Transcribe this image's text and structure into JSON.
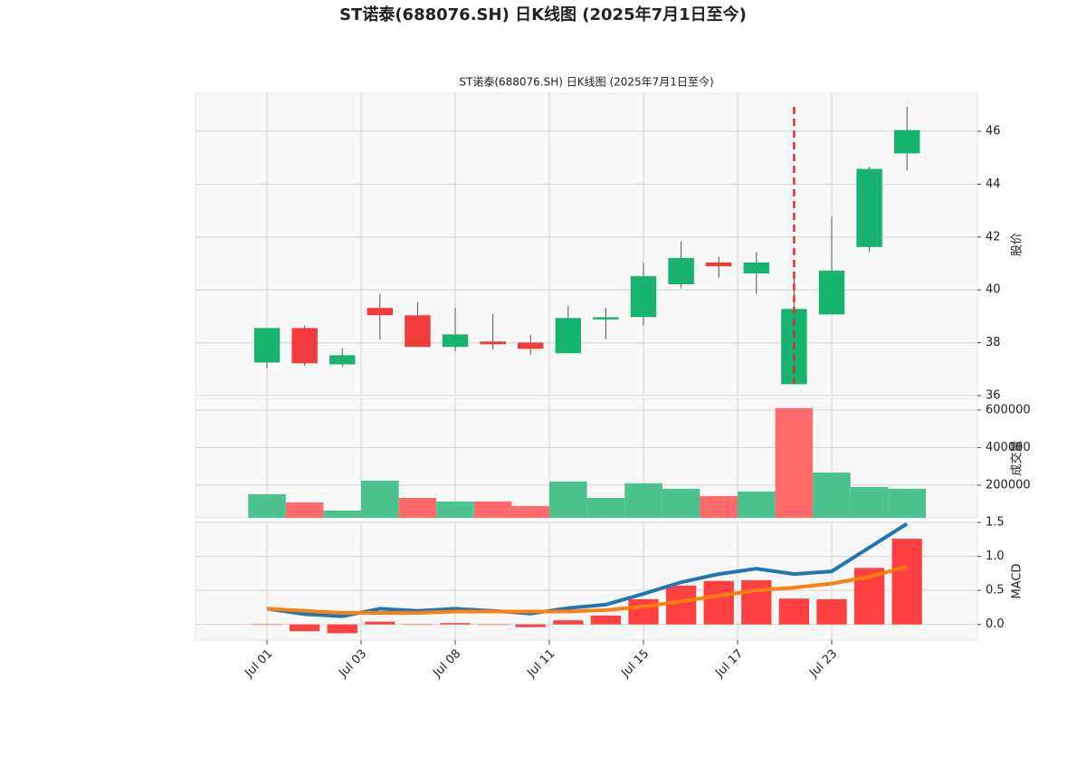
{
  "chart_data": {
    "type": "candlestick",
    "suptitle": "ST诺泰(688076.SH) 日K线图 (2025年7月1日至今)",
    "title": "ST诺泰(688076.SH) 日K线图 (2025年7月1日至今)",
    "xlim": [
      -1.9,
      18.87
    ],
    "xticks": [
      {
        "value": 0,
        "label": "Jul 01"
      },
      {
        "value": 2.5,
        "label": "Jul 03"
      },
      {
        "value": 5,
        "label": "Jul 08"
      },
      {
        "value": 7.5,
        "label": "Jul 11"
      },
      {
        "value": 10,
        "label": "Jul 15"
      },
      {
        "value": 12.5,
        "label": "Jul 17"
      },
      {
        "value": 15,
        "label": "Jul 23"
      }
    ],
    "grid": true,
    "price": {
      "ylabel": "股价",
      "ylim": [
        36,
        47.44
      ],
      "yticks": [
        36,
        38,
        40,
        42,
        44,
        46
      ],
      "up_color": "#16b46e",
      "down_color": "#f23c3c",
      "wick_color": "#555555",
      "open": [
        37.27,
        38.54,
        37.2,
        39.3,
        39.02,
        37.86,
        38.03,
        37.99,
        37.62,
        38.93,
        38.99,
        40.23,
        41.02,
        40.64,
        36.45,
        39.09,
        41.64,
        45.18
      ],
      "high": [
        38.55,
        38.65,
        37.79,
        39.85,
        39.54,
        39.33,
        39.09,
        38.3,
        39.4,
        39.33,
        41.02,
        41.84,
        41.26,
        41.43,
        40.6,
        42.77,
        44.66,
        46.93
      ],
      "low": [
        37.03,
        37.13,
        37.1,
        38.13,
        37.86,
        37.68,
        37.75,
        37.55,
        37.62,
        38.13,
        38.65,
        40.06,
        40.47,
        39.85,
        36.45,
        39.09,
        41.43,
        44.52
      ],
      "close": [
        38.54,
        37.24,
        37.51,
        39.06,
        37.86,
        38.3,
        37.96,
        37.79,
        38.92,
        38.95,
        40.5,
        41.19,
        40.91,
        41.02,
        39.26,
        40.71,
        44.56,
        46.03
      ],
      "vline": {
        "x": 14,
        "color": "#e03030"
      }
    },
    "volume": {
      "ylabel": "成交量",
      "ylim": [
        26000,
        662000
      ],
      "yticks": [
        200000,
        400000,
        600000
      ],
      "values": [
        152000,
        108000,
        65000,
        224000,
        132000,
        113000,
        113000,
        89000,
        219000,
        132000,
        210000,
        181000,
        142000,
        166000,
        610000,
        267000,
        190000,
        181000
      ],
      "colors": [
        "#4cc38e",
        "#ff6b6b",
        "#4cc38e",
        "#4cc38e",
        "#ff6b6b",
        "#4cc38e",
        "#ff6b6b",
        "#ff6b6b",
        "#4cc38e",
        "#4cc38e",
        "#4cc38e",
        "#4cc38e",
        "#ff6b6b",
        "#4cc38e",
        "#ff6b6b",
        "#4cc38e",
        "#4cc38e",
        "#4cc38e"
      ]
    },
    "macd": {
      "ylabel": "MACD",
      "ylim": [
        -0.23,
        1.5
      ],
      "yticks": [
        {
          "value": 0,
          "label": "0.0"
        },
        0.5,
        {
          "value": 1,
          "label": "1.0"
        },
        1.5
      ],
      "hist_color": "#ff4040",
      "hist": [
        -0.005,
        -0.1,
        -0.13,
        0.04,
        0,
        0.02,
        0,
        -0.04,
        0.06,
        0.13,
        0.37,
        0.57,
        0.64,
        0.65,
        0.38,
        0.37,
        0.83,
        1.26
      ],
      "series": [
        {
          "color": "#1f77b4",
          "values": [
            0.23,
            0.15,
            0.12,
            0.23,
            0.2,
            0.23,
            0.2,
            0.16,
            0.24,
            0.29,
            0.45,
            0.62,
            0.74,
            0.82,
            0.74,
            0.78,
            1.13,
            1.48
          ]
        },
        {
          "color": "#ff7f0e",
          "values": [
            0.23,
            0.2,
            0.17,
            0.17,
            0.17,
            0.19,
            0.19,
            0.19,
            0.19,
            0.21,
            0.26,
            0.34,
            0.42,
            0.5,
            0.54,
            0.6,
            0.7,
            0.85
          ]
        }
      ]
    }
  }
}
